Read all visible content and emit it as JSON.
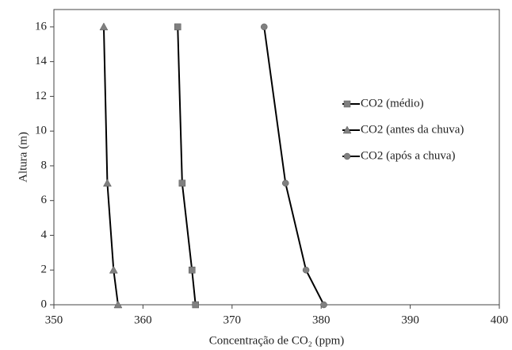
{
  "chart_data": {
    "type": "line",
    "x_label": "Concentração de CO₂ (ppm)",
    "y_label": "Altura (m)",
    "y": [
      0,
      2,
      7,
      16
    ],
    "series": [
      {
        "name": "CO2 (médio)",
        "color": "#808080",
        "marker": "square",
        "x": [
          365.9,
          365.5,
          364.4,
          363.9
        ]
      },
      {
        "name": "CO2 (antes da chuva)",
        "color": "#808080",
        "marker": "triangle",
        "x": [
          357.2,
          356.7,
          356.0,
          355.6
        ]
      },
      {
        "name": "CO2 (após a chuva)",
        "color": "#808080",
        "marker": "circle",
        "x": [
          380.3,
          378.3,
          376.0,
          373.6
        ]
      }
    ],
    "xlim": [
      350,
      400
    ],
    "xticks": [
      350,
      360,
      370,
      380,
      390,
      400
    ],
    "ylim": [
      0,
      17
    ],
    "yticks": [
      0,
      2,
      4,
      6,
      8,
      10,
      12,
      14,
      16
    ],
    "grid": false,
    "legend": "right"
  }
}
